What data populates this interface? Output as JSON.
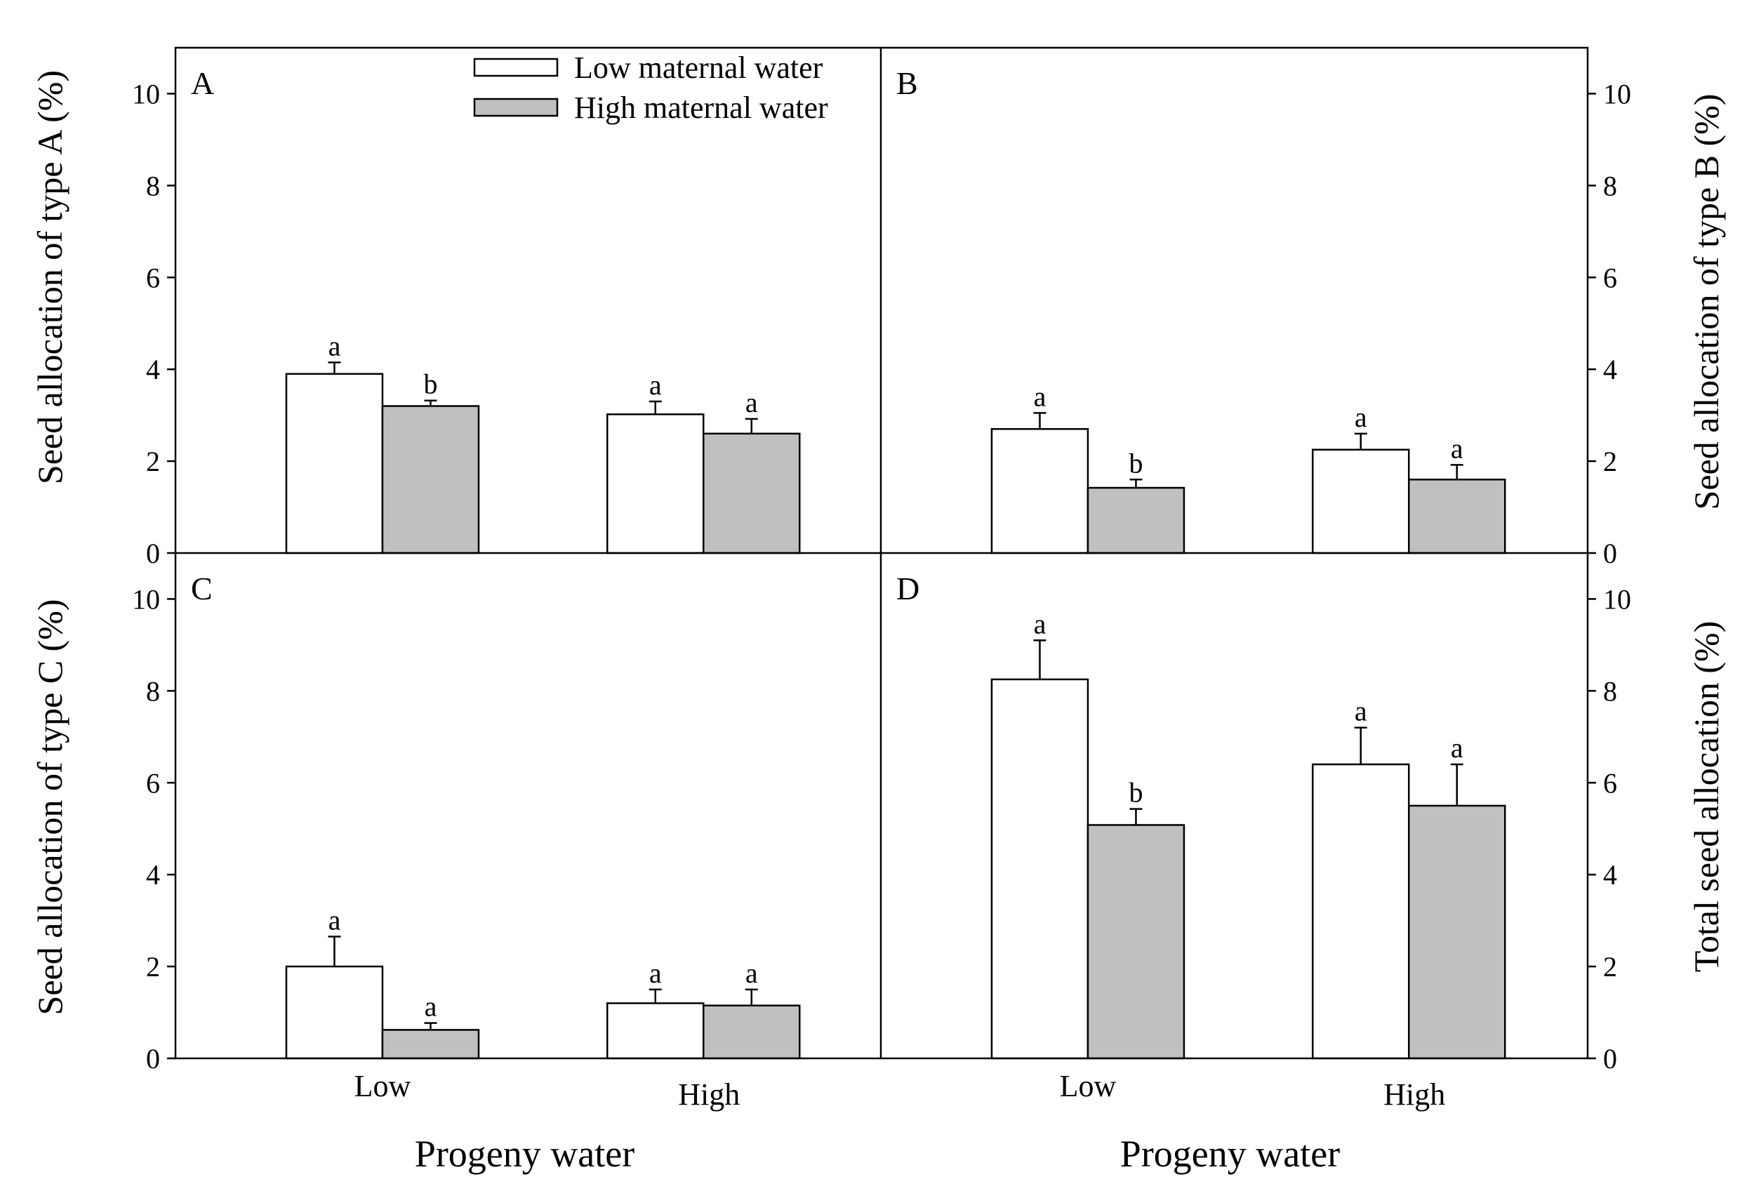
{
  "chart_data": {
    "type": "bar",
    "layout": "2x2 panels",
    "xlabel": "Progeny water",
    "categories": [
      "Low",
      "High"
    ],
    "ylim": [
      0,
      11
    ],
    "yticks": [
      0,
      2,
      4,
      6,
      8,
      10
    ],
    "legend": {
      "placement": "top-right of panel A",
      "entries": [
        {
          "name": "Low maternal water",
          "color": "#ffffff"
        },
        {
          "name": "High maternal water",
          "color": "#c0c0c0"
        }
      ]
    },
    "panels": [
      {
        "letter": "A",
        "ylabel": "Seed allocation of  type A (%)",
        "series": [
          {
            "name": "Low maternal water",
            "values": [
              3.9,
              3.02
            ],
            "errors": [
              0.25,
              0.28
            ],
            "labels": [
              "a",
              "a"
            ]
          },
          {
            "name": "High maternal water",
            "values": [
              3.2,
              2.6
            ],
            "errors": [
              0.12,
              0.32
            ],
            "labels": [
              "b",
              "a"
            ]
          }
        ]
      },
      {
        "letter": "B",
        "ylabel": "Seed allocation of  type B (%)",
        "series": [
          {
            "name": "Low maternal water",
            "values": [
              2.7,
              2.25
            ],
            "errors": [
              0.35,
              0.35
            ],
            "labels": [
              "a",
              "a"
            ]
          },
          {
            "name": "High maternal water",
            "values": [
              1.42,
              1.6
            ],
            "errors": [
              0.18,
              0.32
            ],
            "labels": [
              "b",
              "a"
            ]
          }
        ]
      },
      {
        "letter": "C",
        "ylabel": "Seed allocation of  type C (%)",
        "series": [
          {
            "name": "Low maternal water",
            "values": [
              2.0,
              1.2
            ],
            "errors": [
              0.65,
              0.3
            ],
            "labels": [
              "a",
              "a"
            ]
          },
          {
            "name": "High maternal water",
            "values": [
              0.62,
              1.15
            ],
            "errors": [
              0.15,
              0.35
            ],
            "labels": [
              "a",
              "a"
            ]
          }
        ]
      },
      {
        "letter": "D",
        "ylabel": "Total seed allocation   (%)",
        "series": [
          {
            "name": "Low maternal water",
            "values": [
              8.25,
              6.4
            ],
            "errors": [
              0.85,
              0.8
            ],
            "labels": [
              "a",
              "a"
            ]
          },
          {
            "name": "High maternal water",
            "values": [
              5.08,
              5.5
            ],
            "errors": [
              0.35,
              0.9
            ],
            "labels": [
              "b",
              "a"
            ]
          }
        ]
      }
    ]
  }
}
